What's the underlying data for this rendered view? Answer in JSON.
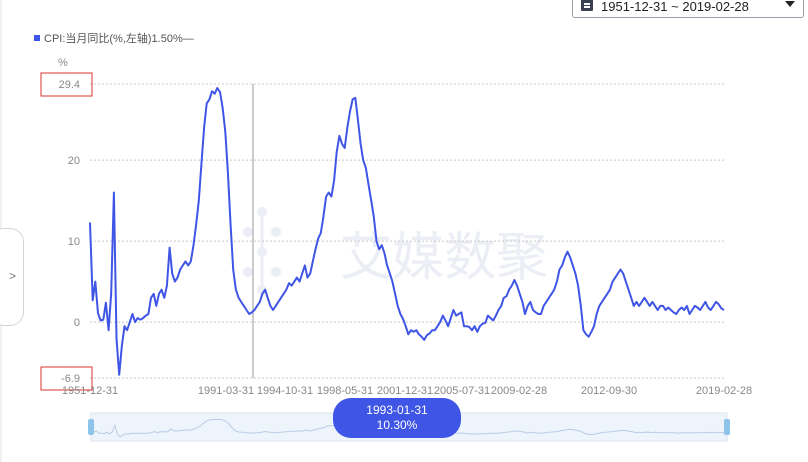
{
  "date_range": {
    "start": "1951-12-31",
    "separator": "~",
    "end": "2019-02-28"
  },
  "legend": {
    "series_label": "CPI:当月同比(%,左轴)1.50%—"
  },
  "tooltip": {
    "date": "1993-01-31",
    "value": "10.30%"
  },
  "watermark": "艾媒数聚",
  "side_toggle": {
    "label": ">"
  },
  "colors": {
    "line": "#3f55e6",
    "grid": "#c8c8c8",
    "highlight_box": "#d9342b",
    "slider_bg": "#eef4fb",
    "slider_handle": "#8fc4ea"
  },
  "chart_data": {
    "type": "line",
    "title": "",
    "ylabel": "%",
    "ymin_label": "-6.9",
    "ymax_label": "29.4",
    "y_ticks": [
      0,
      10,
      20
    ],
    "ylim": [
      -6.9,
      29.4
    ],
    "grid": true,
    "legend_position": "top-left",
    "x_tick_labels": [
      "1951-12-31",
      "1991-03-31",
      "1994-10-31",
      "1998-05-31",
      "2001-12-31",
      "2005-07-31",
      "2009-02-28",
      "2012-09-30",
      "2019-02-28"
    ],
    "crosshair_x": "1993-01-31",
    "series": [
      {
        "name": "CPI:当月同比",
        "values": [
          12.3,
          2.7,
          5.0,
          1.1,
          0.2,
          0.3,
          2.4,
          -1.0,
          3.6,
          16.0,
          -2.0,
          -6.5,
          -3.0,
          -0.5,
          -1.0,
          0.0,
          1.0,
          0.0,
          0.5,
          0.3,
          0.5,
          0.8,
          1.0,
          3.0,
          3.5,
          2.0,
          3.5,
          4.0,
          3.0,
          4.5,
          9.2,
          6.0,
          5.0,
          5.5,
          6.5,
          7.0,
          7.5,
          7.0,
          7.5,
          9.5,
          12.0,
          15.0,
          19.5,
          24.0,
          27.0,
          27.5,
          28.5,
          28.2,
          28.9,
          28.4,
          26.5,
          23.5,
          18.5,
          12.0,
          6.5,
          4.0,
          3.0,
          2.5,
          2.0,
          1.5,
          1.0,
          1.2,
          1.5,
          2.0,
          2.5,
          3.5,
          4.0,
          3.0,
          2.0,
          1.5,
          2.0,
          2.5,
          3.0,
          3.5,
          4.0,
          4.8,
          4.5,
          5.0,
          5.5,
          5.0,
          6.0,
          7.0,
          5.5,
          6.0,
          7.5,
          9.0,
          10.3,
          11.0,
          13.0,
          15.5,
          16.0,
          15.5,
          17.5,
          21.0,
          23.0,
          22.0,
          21.5,
          24.0,
          26.0,
          27.5,
          27.7,
          25.0,
          22.0,
          20.0,
          19.0,
          17.0,
          15.0,
          13.0,
          10.0,
          9.0,
          9.5,
          8.5,
          7.0,
          6.0,
          5.0,
          3.5,
          2.0,
          1.0,
          0.4,
          -0.5,
          -1.5,
          -1.0,
          -1.2,
          -1.0,
          -1.5,
          -1.8,
          -2.2,
          -1.6,
          -1.4,
          -1.0,
          -1.0,
          -0.5,
          0.0,
          0.8,
          0.2,
          -0.5,
          0.5,
          1.5,
          0.8,
          1.0,
          1.2,
          -0.5,
          -0.5,
          -0.6,
          -1.0,
          -0.5,
          -1.2,
          -0.5,
          -0.2,
          -0.1,
          0.8,
          0.5,
          0.2,
          0.8,
          1.5,
          2.0,
          3.0,
          3.2,
          4.0,
          4.5,
          5.2,
          4.5,
          3.5,
          2.5,
          1.0,
          2.0,
          2.5,
          1.5,
          1.2,
          1.0,
          1.0,
          2.0,
          2.5,
          3.0,
          3.5,
          4.0,
          5.0,
          6.5,
          7.0,
          8.0,
          8.7,
          8.0,
          7.0,
          6.0,
          4.5,
          2.0,
          -1.0,
          -1.5,
          -1.8,
          -1.2,
          -0.5,
          1.0,
          2.0,
          2.5,
          3.0,
          3.5,
          4.0,
          5.0,
          5.5,
          6.0,
          6.5,
          6.0,
          5.0,
          4.0,
          3.0,
          2.0,
          2.5,
          2.0,
          2.5,
          3.0,
          2.5,
          2.0,
          2.5,
          2.0,
          1.5,
          2.0,
          2.0,
          1.5,
          1.8,
          1.5,
          1.2,
          1.0,
          1.5,
          1.8,
          1.5,
          2.0,
          1.0,
          1.5,
          2.0,
          1.8,
          1.5,
          2.0,
          2.5,
          1.8,
          1.5,
          2.0,
          2.5,
          2.2,
          1.7,
          1.5
        ]
      }
    ]
  }
}
